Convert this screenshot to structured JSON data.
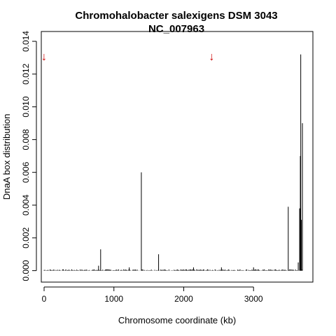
{
  "chart_data": {
    "type": "bar",
    "title": "Chromohalobacter salexigens DSM 3043",
    "subtitle": "NC_007963",
    "xlabel": "Chromosome coordinate (kb)",
    "ylabel": "DnaA box distribution",
    "xlim": [
      -40,
      3850
    ],
    "ylim": [
      -0.0007,
      0.0146
    ],
    "x_ticks": [
      {
        "value": 0,
        "label": "0"
      },
      {
        "value": 1000,
        "label": "1000"
      },
      {
        "value": 2000,
        "label": "2000"
      },
      {
        "value": 3000,
        "label": "3000"
      }
    ],
    "y_ticks": [
      {
        "value": 0.0,
        "label": "0.000"
      },
      {
        "value": 0.002,
        "label": "0.002"
      },
      {
        "value": 0.004,
        "label": "0.004"
      },
      {
        "value": 0.006,
        "label": "0.006"
      },
      {
        "value": 0.008,
        "label": "0.008"
      },
      {
        "value": 0.01,
        "label": "0.010"
      },
      {
        "value": 0.012,
        "label": "0.012"
      },
      {
        "value": 0.014,
        "label": "0.014"
      }
    ],
    "bar_color": "#000000",
    "marker_color": "#cc0000",
    "markers": [
      {
        "x": 0,
        "glyph": "↓"
      },
      {
        "x": 2400,
        "glyph": "↓"
      }
    ],
    "bars": [
      {
        "x": 780,
        "y": 0.0003
      },
      {
        "x": 810,
        "y": 0.0013
      },
      {
        "x": 1220,
        "y": 0.0002
      },
      {
        "x": 1393,
        "y": 0.006
      },
      {
        "x": 1640,
        "y": 0.001
      },
      {
        "x": 2140,
        "y": 0.0002
      },
      {
        "x": 2540,
        "y": 0.0002
      },
      {
        "x": 3000,
        "y": 0.0002
      },
      {
        "x": 3497,
        "y": 0.0039
      },
      {
        "x": 3640,
        "y": 0.0005
      },
      {
        "x": 3660,
        "y": 0.0038
      },
      {
        "x": 3670,
        "y": 0.007
      },
      {
        "x": 3676,
        "y": 0.0132
      },
      {
        "x": 3685,
        "y": 0.0031
      },
      {
        "x": 3700,
        "y": 0.009
      }
    ],
    "baseline_noise": {
      "x_start": 0,
      "x_end": 3700,
      "step": 12,
      "max_y": 8e-05
    }
  }
}
